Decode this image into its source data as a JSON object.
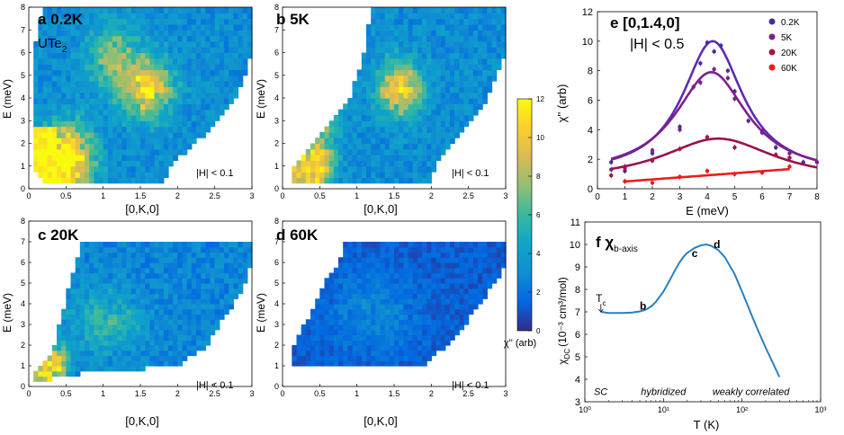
{
  "colors": {
    "colormap": [
      "#352a87",
      "#0268e1",
      "#108ed2",
      "#0fa5c9",
      "#38b99e",
      "#92bf73",
      "#d9ba56",
      "#fcce2e",
      "#f9fb0e"
    ],
    "blank": "#ffffff",
    "fit_lines": [
      "#5d2db3",
      "#7c1f8e",
      "#97124f",
      "#ee1b1b"
    ],
    "chi_line": "#2a7fbf"
  },
  "chart_data": [
    {
      "type": "heatmap",
      "panel": "a",
      "title": "a 0.2K",
      "sample_label": "UTe",
      "sample_subscript": "2",
      "xlabel": "[0,K,0]",
      "ylabel": "E (meV)",
      "xlim": [
        0,
        3
      ],
      "ylim": [
        0,
        8
      ],
      "xticks": [
        "0",
        "0.5",
        "1",
        "1.5",
        "2",
        "2.5",
        "3"
      ],
      "yticks": [
        "0",
        "1",
        "2",
        "3",
        "4",
        "5",
        "6",
        "7",
        "8"
      ],
      "annotation": "|H| < 0.1",
      "energy_rows": 32,
      "momentum_cols": 48,
      "coverage": [
        [
          0.55,
          1.5
        ],
        [
          0.5,
          1.8
        ],
        [
          0.45,
          2.1
        ],
        [
          0.4,
          2.35
        ],
        [
          0.3,
          2.55
        ],
        [
          0.22,
          2.7
        ],
        [
          0.12,
          2.9
        ],
        [
          0.08,
          3.0
        ]
      ],
      "coverage_E": [
        0.8,
        1.8,
        2.8,
        3.8,
        4.8,
        5.8,
        6.8,
        8.0
      ],
      "intensity_features": [
        {
          "K": 0.45,
          "E": 1.2,
          "amp": 11,
          "width_K": 0.35,
          "width_E": 1.4
        },
        {
          "K": 1.55,
          "E": 4.3,
          "amp": 7,
          "width_K": 0.35,
          "width_E": 1.3
        },
        {
          "K": 1.1,
          "E": 5.8,
          "amp": 4,
          "width_K": 0.35,
          "width_E": 1.4
        }
      ]
    },
    {
      "type": "heatmap",
      "panel": "b",
      "title": "b 5K",
      "xlabel": "[0,K,0]",
      "ylabel": "E (meV)",
      "xlim": [
        0,
        3
      ],
      "ylim": [
        0,
        8
      ],
      "xticks": [
        "0",
        "0.5",
        "1",
        "1.5",
        "2",
        "2.5",
        "3"
      ],
      "yticks": [
        "0",
        "1",
        "2",
        "3",
        "4",
        "5",
        "6",
        "7",
        "8"
      ],
      "annotation": "|H| < 0.1",
      "energy_rows": 32,
      "momentum_cols": 48,
      "coverage_E": [
        0.8,
        1.8,
        2.8,
        3.8,
        4.8,
        5.8,
        6.8,
        8.0
      ],
      "intensity_features": [
        {
          "K": 0.45,
          "E": 1.0,
          "amp": 9,
          "width_K": 0.2,
          "width_E": 0.8
        },
        {
          "K": 1.55,
          "E": 4.3,
          "amp": 7,
          "width_K": 0.3,
          "width_E": 1.2
        },
        {
          "K": 0.5,
          "E": 3.5,
          "amp": 5,
          "width_K": 0.25,
          "width_E": 1.5
        }
      ]
    },
    {
      "type": "heatmap",
      "panel": "c",
      "title": "c 20K",
      "xlabel": "[0,K,0]",
      "ylabel": "E (meV)",
      "xlim": [
        0,
        3
      ],
      "ylim": [
        0,
        8
      ],
      "xticks": [
        "0",
        "0.5",
        "1",
        "1.5",
        "2",
        "2.5",
        "3"
      ],
      "yticks": [
        "0",
        "1",
        "2",
        "3",
        "4",
        "5",
        "6",
        "7",
        "8"
      ],
      "annotation": "|H| < 0.1",
      "energy_rows": 28,
      "momentum_cols": 48,
      "coverage_E": [
        0.6,
        1.6,
        2.6,
        3.6,
        4.6,
        5.6,
        7.0
      ],
      "intensity_features": [
        {
          "K": 0.3,
          "E": 1.0,
          "amp": 8,
          "width_K": 0.2,
          "width_E": 0.8
        },
        {
          "K": 1.0,
          "E": 3.0,
          "amp": 3,
          "width_K": 0.5,
          "width_E": 1.5
        }
      ]
    },
    {
      "type": "heatmap",
      "panel": "d",
      "title": "d 60K",
      "xlabel": "[0,K,0]",
      "ylabel": "E (meV)",
      "xlim": [
        0,
        3
      ],
      "ylim": [
        0,
        8
      ],
      "xticks": [
        "0",
        "0.5",
        "1",
        "1.5",
        "2",
        "2.5",
        "3"
      ],
      "yticks": [
        "0",
        "1",
        "2",
        "3",
        "4",
        "5",
        "6",
        "7",
        "8"
      ],
      "annotation": "|H| < 0.1",
      "energy_rows": 24,
      "momentum_cols": 48,
      "coverage_E": [
        1.0,
        2.0,
        3.0,
        4.0,
        5.0,
        6.0,
        7.0
      ],
      "intensity_features": [
        {
          "K": 1.2,
          "E": 3.5,
          "amp": 1.5,
          "width_K": 0.6,
          "width_E": 2.0
        }
      ]
    },
    {
      "type": "colorbar",
      "label": "χ'' (arb)",
      "range": [
        0,
        12
      ],
      "ticks": [
        "0",
        "2",
        "4",
        "6",
        "8",
        "10",
        "12"
      ]
    },
    {
      "type": "scatter",
      "panel": "e",
      "title": "e [0,1.4,0]",
      "subtitle": "|H| < 0.5",
      "xlabel": "E (meV)",
      "ylabel": "χ'' (arb)",
      "xlim": [
        0,
        8
      ],
      "ylim": [
        0,
        12
      ],
      "xticks": [
        "0",
        "1",
        "2",
        "3",
        "4",
        "5",
        "6",
        "7",
        "8"
      ],
      "yticks": [
        "0",
        "2",
        "4",
        "6",
        "8",
        "10",
        "12"
      ],
      "legend_position": "top-right",
      "series": [
        {
          "name": "0.2K",
          "color": "#4b2aa0",
          "x": [
            0.5,
            1.0,
            2.0,
            3.0,
            3.5,
            3.75,
            4.0,
            4.25,
            4.5,
            4.75,
            5.0,
            5.5,
            6.0,
            6.5,
            7.0,
            7.5,
            8.0
          ],
          "y": [
            1.8,
            1.2,
            2.4,
            4.2,
            6.9,
            8.5,
            9.9,
            9.3,
            9.7,
            8.0,
            6.6,
            4.6,
            3.8,
            2.8,
            2.1,
            1.8,
            1.8
          ],
          "fit_peak": 10.0,
          "fit_center": 4.2,
          "fit_width": 1.35,
          "fit_base": 0.9
        },
        {
          "name": "5K",
          "color": "#7c1f8e",
          "x": [
            0.5,
            1.0,
            2.0,
            3.0,
            3.75,
            4.25,
            4.75,
            5.0,
            6.0,
            7.0,
            8.0
          ],
          "y": [
            1.3,
            1.5,
            2.6,
            4.0,
            7.2,
            8.1,
            7.5,
            6.1,
            3.9,
            2.4,
            1.8
          ],
          "fit_peak": 7.9,
          "fit_center": 4.15,
          "fit_width": 1.6,
          "fit_base": 0.9
        },
        {
          "name": "20K",
          "color": "#a6173f",
          "x": [
            0.5,
            1.0,
            2.0,
            3.0,
            4.0,
            5.0,
            6.5,
            7.0
          ],
          "y": [
            0.9,
            1.4,
            1.9,
            2.7,
            3.5,
            2.8,
            2.3,
            2.1
          ],
          "fit_peak": 3.4,
          "fit_center": 4.4,
          "fit_width": 2.5,
          "fit_base": 0.5
        },
        {
          "name": "60K",
          "color": "#ee1b1b",
          "x": [
            1.0,
            2.0,
            3.0,
            4.0,
            5.0,
            6.0,
            7.0
          ],
          "y": [
            0.5,
            0.4,
            0.8,
            1.2,
            1.0,
            1.1,
            1.5
          ],
          "fit_linear": [
            0.35,
            0.14
          ],
          "fit_range": [
            1.0,
            7.0
          ]
        }
      ]
    },
    {
      "type": "line",
      "panel": "f",
      "title": "f χ",
      "title_subscript": "b-axis",
      "xlabel": "T (K)",
      "ylabel": "χ",
      "ylabel_subscript": "DC",
      "ylabel_unit": "(10⁻³ cm³/mol)",
      "xscale": "log",
      "xlim": [
        1,
        1000
      ],
      "ylim": [
        3,
        11
      ],
      "xticks": [
        "10⁰",
        "10¹",
        "10²",
        "10³"
      ],
      "yticks": [
        "3",
        "4",
        "5",
        "6",
        "7",
        "8",
        "9",
        "10",
        "11"
      ],
      "series": [
        {
          "name": "χ b-axis",
          "x": [
            1.6,
            2,
            3,
            4,
            5,
            6,
            7,
            8,
            10,
            12,
            14,
            16,
            18,
            20,
            25,
            30,
            35,
            40,
            50,
            60,
            80,
            100,
            150,
            200,
            300
          ],
          "y": [
            7.0,
            6.95,
            6.95,
            6.97,
            7.02,
            7.1,
            7.25,
            7.45,
            7.9,
            8.4,
            8.85,
            9.2,
            9.45,
            9.62,
            9.85,
            9.96,
            10.0,
            9.95,
            9.75,
            9.45,
            8.7,
            7.9,
            6.4,
            5.4,
            4.1
          ]
        }
      ],
      "annotations": [
        {
          "text": "T",
          "sub": "c",
          "x": 1.6,
          "y": 7.45
        },
        {
          "text": "b",
          "x": 5.5,
          "y": 7.1
        },
        {
          "text": "c",
          "x": 25,
          "y": 9.45
        },
        {
          "text": "d",
          "x": 48,
          "y": 9.85
        },
        {
          "text": "SC",
          "x": 1.3,
          "y": 3.3
        },
        {
          "text": "hybridized",
          "x": 10,
          "y": 3.3
        },
        {
          "text": "weakly correlated",
          "x": 130,
          "y": 3.3
        }
      ]
    }
  ]
}
